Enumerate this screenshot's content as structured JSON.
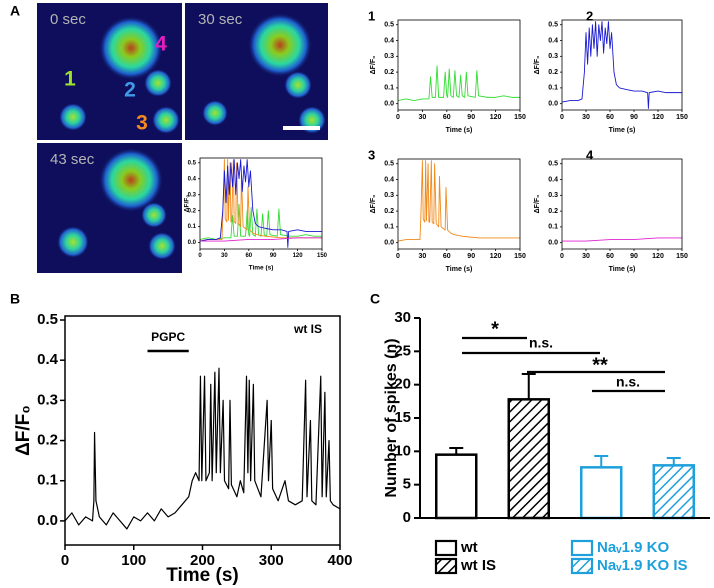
{
  "panel_labels": [
    "A",
    "B",
    "C"
  ],
  "images": [
    {
      "label": "0 sec"
    },
    {
      "label": "30 sec"
    },
    {
      "label": "43 sec"
    }
  ],
  "cells": [
    {
      "text": "1",
      "color": "#9be22d"
    },
    {
      "text": "2",
      "color": "#3f9be8"
    },
    {
      "text": "3",
      "color": "#f5881e"
    },
    {
      "text": "4",
      "color": "#e51fbf"
    }
  ],
  "chart_data": [
    {
      "type": "line",
      "xlabel": "Time (s)",
      "ylabel": "ΔF/F₀",
      "xlim": [
        0,
        150
      ],
      "ylim": [
        -0.04,
        0.53
      ],
      "xticks": [
        0,
        30,
        60,
        90,
        120,
        150
      ],
      "yticks": [
        {
          "value": 0,
          "label": "0.0"
        },
        0.1,
        0.2,
        0.3,
        0.4,
        0.5
      ],
      "series": [
        {
          "color": "#33dd33",
          "x": [
            0,
            10,
            20,
            30,
            38,
            40,
            42,
            46,
            48,
            50,
            56,
            58,
            60,
            61,
            63,
            65,
            68,
            70,
            72,
            75,
            77,
            79,
            82,
            84,
            86,
            95,
            97,
            99,
            110,
            120,
            130,
            140,
            150
          ],
          "values": [
            0.02,
            0.03,
            0.02,
            0.03,
            0.03,
            0.17,
            0.04,
            0.04,
            0.24,
            0.04,
            0.04,
            0.2,
            0.05,
            0.04,
            0.22,
            0.05,
            0.04,
            0.21,
            0.05,
            0.04,
            0.18,
            0.05,
            0.04,
            0.2,
            0.05,
            0.04,
            0.21,
            0.05,
            0.04,
            0.04,
            0.05,
            0.04,
            0.04
          ]
        },
        {
          "color": "#f08a1c",
          "x": [
            0,
            10,
            20,
            27,
            28,
            30,
            31,
            33,
            34,
            35,
            37,
            38,
            39,
            41,
            42,
            44,
            45,
            47,
            50,
            51,
            53,
            58,
            59,
            61,
            65,
            70,
            80,
            100,
            120,
            150
          ],
          "values": [
            0.01,
            0.02,
            0.02,
            0.02,
            0.15,
            0.52,
            0.15,
            0.13,
            0.52,
            0.14,
            0.5,
            0.13,
            0.13,
            0.52,
            0.13,
            0.12,
            0.5,
            0.12,
            0.1,
            0.42,
            0.1,
            0.08,
            0.35,
            0.08,
            0.06,
            0.05,
            0.04,
            0.03,
            0.03,
            0.03
          ]
        },
        {
          "color": "#1a1ad0",
          "x": [
            0,
            10,
            20,
            25,
            28,
            30,
            32,
            34,
            36,
            38,
            40,
            42,
            44,
            46,
            48,
            50,
            52,
            54,
            56,
            58,
            60,
            62,
            65,
            68,
            72,
            80,
            90,
            100,
            107,
            108,
            109,
            120,
            130,
            140,
            150
          ],
          "values": [
            0.01,
            0.02,
            0.02,
            0.03,
            0.2,
            0.45,
            0.25,
            0.48,
            0.3,
            0.5,
            0.35,
            0.52,
            0.3,
            0.5,
            0.4,
            0.52,
            0.32,
            0.48,
            0.38,
            0.52,
            0.35,
            0.45,
            0.2,
            0.12,
            0.1,
            0.09,
            0.08,
            0.08,
            0.07,
            -0.03,
            0.07,
            0.08,
            0.07,
            0.07,
            0.07
          ]
        },
        {
          "color": "#e020d0",
          "x": [
            0,
            30,
            60,
            90,
            120,
            150
          ],
          "values": [
            0.01,
            0.01,
            0.02,
            0.02,
            0.03,
            0.03
          ]
        }
      ]
    },
    {
      "type": "line",
      "title": "1",
      "xlabel": "Time (s)",
      "ylabel": "ΔF/F₀",
      "xlim": [
        0,
        150
      ],
      "ylim": [
        -0.04,
        0.53
      ],
      "xticks": [
        0,
        30,
        60,
        90,
        120,
        150
      ],
      "yticks": [
        {
          "value": 0,
          "label": "0.0"
        },
        0.1,
        0.2,
        0.3,
        0.4,
        0.5
      ],
      "series": [
        {
          "color": "#33dd33",
          "x": [
            0,
            10,
            20,
            30,
            38,
            40,
            42,
            46,
            48,
            50,
            56,
            58,
            60,
            61,
            63,
            65,
            68,
            70,
            72,
            75,
            77,
            79,
            82,
            84,
            86,
            95,
            97,
            99,
            110,
            120,
            130,
            140,
            150
          ],
          "values": [
            0.02,
            0.03,
            0.02,
            0.03,
            0.03,
            0.17,
            0.04,
            0.04,
            0.24,
            0.04,
            0.04,
            0.2,
            0.05,
            0.04,
            0.22,
            0.05,
            0.04,
            0.21,
            0.05,
            0.04,
            0.18,
            0.05,
            0.04,
            0.2,
            0.05,
            0.04,
            0.21,
            0.05,
            0.04,
            0.04,
            0.05,
            0.04,
            0.04
          ]
        }
      ]
    },
    {
      "type": "line",
      "title": "2",
      "xlabel": "Time (s)",
      "ylabel": "ΔF/F₀",
      "xlim": [
        0,
        150
      ],
      "ylim": [
        -0.04,
        0.53
      ],
      "xticks": [
        0,
        30,
        60,
        90,
        120,
        150
      ],
      "yticks": [
        {
          "value": 0,
          "label": "0.0"
        },
        0.1,
        0.2,
        0.3,
        0.4,
        0.5
      ],
      "series": [
        {
          "color": "#1a1ad0",
          "x": [
            0,
            10,
            20,
            25,
            28,
            30,
            32,
            34,
            36,
            38,
            40,
            42,
            44,
            46,
            48,
            50,
            52,
            54,
            56,
            58,
            60,
            62,
            65,
            68,
            72,
            80,
            90,
            100,
            107,
            108,
            109,
            120,
            130,
            140,
            150
          ],
          "values": [
            0.01,
            0.02,
            0.02,
            0.03,
            0.2,
            0.45,
            0.25,
            0.48,
            0.3,
            0.5,
            0.35,
            0.52,
            0.3,
            0.5,
            0.4,
            0.52,
            0.32,
            0.48,
            0.38,
            0.52,
            0.35,
            0.45,
            0.2,
            0.12,
            0.1,
            0.09,
            0.08,
            0.08,
            0.07,
            -0.03,
            0.07,
            0.08,
            0.07,
            0.07,
            0.07
          ]
        }
      ]
    },
    {
      "type": "line",
      "title": "3",
      "xlabel": "Time (s)",
      "ylabel": "ΔF/F₀",
      "xlim": [
        0,
        150
      ],
      "ylim": [
        -0.04,
        0.53
      ],
      "xticks": [
        0,
        30,
        60,
        90,
        120,
        150
      ],
      "yticks": [
        {
          "value": 0,
          "label": "0.0"
        },
        0.1,
        0.2,
        0.3,
        0.4,
        0.5
      ],
      "series": [
        {
          "color": "#f08a1c",
          "x": [
            0,
            10,
            20,
            27,
            28,
            30,
            31,
            33,
            34,
            35,
            37,
            38,
            39,
            41,
            42,
            44,
            45,
            47,
            50,
            51,
            53,
            58,
            59,
            61,
            65,
            70,
            80,
            100,
            120,
            150
          ],
          "values": [
            0.01,
            0.02,
            0.02,
            0.02,
            0.15,
            0.52,
            0.15,
            0.13,
            0.52,
            0.14,
            0.5,
            0.13,
            0.13,
            0.52,
            0.13,
            0.12,
            0.5,
            0.12,
            0.1,
            0.42,
            0.1,
            0.08,
            0.35,
            0.08,
            0.06,
            0.05,
            0.04,
            0.03,
            0.03,
            0.03
          ]
        }
      ]
    },
    {
      "type": "line",
      "title": "4",
      "xlabel": "Time (s)",
      "ylabel": "ΔF/F₀",
      "xlim": [
        0,
        150
      ],
      "ylim": [
        -0.04,
        0.53
      ],
      "xticks": [
        0,
        30,
        60,
        90,
        120,
        150
      ],
      "yticks": [
        {
          "value": 0,
          "label": "0.0"
        },
        0.1,
        0.2,
        0.3,
        0.4,
        0.5
      ],
      "series": [
        {
          "color": "#e020d0",
          "x": [
            0,
            30,
            60,
            90,
            120,
            150
          ],
          "values": [
            0.01,
            0.01,
            0.02,
            0.02,
            0.03,
            0.03
          ]
        }
      ]
    },
    {
      "type": "line",
      "xlabel": "Time (s)",
      "ylabel": "ΔF/F₀",
      "xlim": [
        0,
        400
      ],
      "ylim": [
        -0.06,
        0.51
      ],
      "xticks": [
        0,
        100,
        200,
        300,
        400
      ],
      "yticks": [
        {
          "value": 0,
          "label": "0.0"
        },
        0.1,
        0.2,
        0.3,
        0.4,
        0.5
      ],
      "annotations": [
        {
          "text": "PGPC",
          "x_range": [
            120,
            180
          ]
        },
        {
          "text": "wt IS"
        }
      ],
      "series": [
        {
          "color": "#000000",
          "x": [
            0,
            10,
            20,
            30,
            40,
            42,
            43,
            45,
            50,
            60,
            70,
            80,
            90,
            100,
            110,
            120,
            130,
            140,
            150,
            160,
            170,
            180,
            185,
            190,
            195,
            197,
            199,
            203,
            205,
            210,
            212,
            214,
            218,
            220,
            224,
            226,
            230,
            232,
            238,
            240,
            242,
            250,
            255,
            260,
            264,
            266,
            268,
            270,
            274,
            276,
            285,
            294,
            296,
            300,
            302,
            310,
            320,
            325,
            335,
            345,
            350,
            352,
            357,
            359,
            365,
            372,
            374,
            378,
            380,
            384,
            386,
            390,
            400
          ],
          "values": [
            0.0,
            0.02,
            -0.01,
            0.01,
            0.0,
            0.05,
            0.22,
            0.05,
            0.01,
            -0.01,
            0.02,
            0.0,
            -0.02,
            0.01,
            0.0,
            0.02,
            0.0,
            0.03,
            0.01,
            0.02,
            0.04,
            0.06,
            0.1,
            0.12,
            0.1,
            0.36,
            0.1,
            0.36,
            0.1,
            0.12,
            0.34,
            0.1,
            0.37,
            0.12,
            0.38,
            0.12,
            0.3,
            0.1,
            0.08,
            0.3,
            0.09,
            0.06,
            0.1,
            0.07,
            0.36,
            0.12,
            0.35,
            0.1,
            0.34,
            0.1,
            0.06,
            0.3,
            0.1,
            0.25,
            0.08,
            0.05,
            0.1,
            0.05,
            0.04,
            0.05,
            0.35,
            0.06,
            0.25,
            0.05,
            0.04,
            0.36,
            0.06,
            0.32,
            0.06,
            0.2,
            0.05,
            0.04,
            0.03
          ]
        }
      ]
    },
    {
      "type": "bar",
      "ylabel": "Number of spikes (n)",
      "categories": [
        "wt",
        "wt IS",
        "Naᵥ1.9 KO",
        "Naᵥ1.9 KO IS"
      ],
      "values": [
        9.5,
        17.8,
        7.6,
        7.9
      ],
      "errors": [
        1.0,
        3.8,
        1.7,
        1.1
      ],
      "colors": [
        "#000000",
        "#000000",
        "#1ea0dc",
        "#1ea0dc"
      ],
      "hatched": [
        false,
        true,
        false,
        true
      ],
      "ylim": [
        0,
        30
      ],
      "yticks": [
        0,
        5,
        10,
        15,
        20,
        25,
        30
      ],
      "annotations": [
        "*",
        "n.s.",
        "**",
        "n.s."
      ]
    }
  ]
}
